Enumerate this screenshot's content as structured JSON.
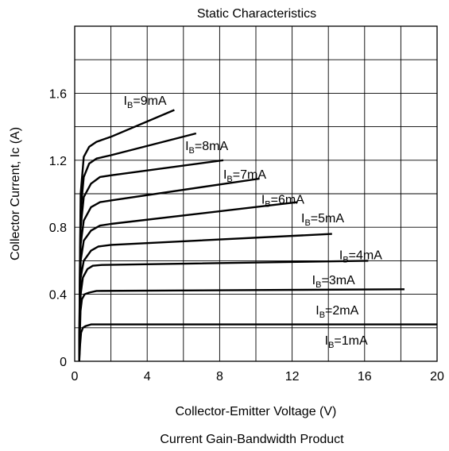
{
  "chart_data": {
    "type": "line",
    "title": "Static Characteristics",
    "xlabel": "Collector-Emitter Voltage (V)",
    "ylabel": "Collector Current, Ic (A)",
    "caption": "Current Gain-Bandwidth Product",
    "xlim": [
      0,
      20
    ],
    "ylim": [
      0,
      2.0
    ],
    "xticks": [
      0,
      4,
      8,
      12,
      16,
      20
    ],
    "yticks": [
      0,
      0.4,
      0.8,
      1.2,
      1.6
    ],
    "ytick_labels": [
      "0",
      "0.4",
      "0.8",
      "1.2",
      "1.6"
    ],
    "grid": true,
    "grid_x_step": 2,
    "grid_y_step": 0.2,
    "line_color": "#000000",
    "series": [
      {
        "label_main": "I",
        "label_sub": "B",
        "label_rest": "=1mA",
        "points": [
          [
            0.25,
            0
          ],
          [
            0.3,
            0.1
          ],
          [
            0.35,
            0.17
          ],
          [
            0.45,
            0.2
          ],
          [
            0.6,
            0.21
          ],
          [
            0.9,
            0.22
          ],
          [
            1.2,
            0.22
          ],
          [
            20,
            0.22
          ]
        ]
      },
      {
        "label_main": "I",
        "label_sub": "B",
        "label_rest": "=2mA",
        "points": [
          [
            0.25,
            0
          ],
          [
            0.28,
            0.15
          ],
          [
            0.32,
            0.3
          ],
          [
            0.4,
            0.37
          ],
          [
            0.55,
            0.4
          ],
          [
            0.8,
            0.41
          ],
          [
            1.2,
            0.42
          ],
          [
            18.2,
            0.43
          ]
        ]
      },
      {
        "label_main": "I",
        "label_sub": "B",
        "label_rest": "=3mA",
        "points": [
          [
            0.25,
            0
          ],
          [
            0.28,
            0.2
          ],
          [
            0.33,
            0.4
          ],
          [
            0.45,
            0.5
          ],
          [
            0.7,
            0.55
          ],
          [
            1.0,
            0.57
          ],
          [
            1.5,
            0.575
          ],
          [
            16.2,
            0.6
          ]
        ]
      },
      {
        "label_main": "I",
        "label_sub": "B",
        "label_rest": "=4mA",
        "points": [
          [
            0.25,
            0
          ],
          [
            0.28,
            0.25
          ],
          [
            0.33,
            0.5
          ],
          [
            0.5,
            0.6
          ],
          [
            0.9,
            0.66
          ],
          [
            1.3,
            0.685
          ],
          [
            2.0,
            0.695
          ],
          [
            14.2,
            0.76
          ]
        ]
      },
      {
        "label_main": "I",
        "label_sub": "B",
        "label_rest": "=5mA",
        "points": [
          [
            0.25,
            0
          ],
          [
            0.28,
            0.3
          ],
          [
            0.33,
            0.6
          ],
          [
            0.5,
            0.72
          ],
          [
            0.9,
            0.78
          ],
          [
            1.4,
            0.81
          ],
          [
            2.0,
            0.82
          ],
          [
            12.3,
            0.95
          ]
        ]
      },
      {
        "label_main": "I",
        "label_sub": "B",
        "label_rest": "=6mA",
        "points": [
          [
            0.25,
            0
          ],
          [
            0.28,
            0.35
          ],
          [
            0.33,
            0.7
          ],
          [
            0.5,
            0.84
          ],
          [
            0.9,
            0.92
          ],
          [
            1.4,
            0.95
          ],
          [
            2.0,
            0.96
          ],
          [
            10.2,
            1.09
          ]
        ]
      },
      {
        "label_main": "I",
        "label_sub": "B",
        "label_rest": "=7mA",
        "points": [
          [
            0.25,
            0
          ],
          [
            0.28,
            0.4
          ],
          [
            0.33,
            0.8
          ],
          [
            0.5,
            0.98
          ],
          [
            0.9,
            1.06
          ],
          [
            1.4,
            1.1
          ],
          [
            2.0,
            1.11
          ],
          [
            8.2,
            1.2
          ]
        ]
      },
      {
        "label_main": "I",
        "label_sub": "B",
        "label_rest": "=8mA",
        "points": [
          [
            0.25,
            0
          ],
          [
            0.28,
            0.45
          ],
          [
            0.33,
            0.9
          ],
          [
            0.5,
            1.1
          ],
          [
            0.8,
            1.18
          ],
          [
            1.2,
            1.21
          ],
          [
            2.0,
            1.23
          ],
          [
            6.7,
            1.36
          ]
        ]
      },
      {
        "label_main": "I",
        "label_sub": "B",
        "label_rest": "=9mA",
        "points": [
          [
            0.25,
            0
          ],
          [
            0.28,
            0.5
          ],
          [
            0.33,
            1.0
          ],
          [
            0.5,
            1.22
          ],
          [
            0.8,
            1.28
          ],
          [
            1.2,
            1.31
          ],
          [
            2.0,
            1.34
          ],
          [
            5.5,
            1.5
          ]
        ]
      }
    ],
    "label_positions": [
      [
        13.8,
        0.1
      ],
      [
        13.3,
        0.28
      ],
      [
        13.1,
        0.46
      ],
      [
        14.6,
        0.61
      ],
      [
        12.5,
        0.83
      ],
      [
        10.3,
        0.94
      ],
      [
        8.2,
        1.09
      ],
      [
        6.1,
        1.26
      ],
      [
        2.7,
        1.53
      ]
    ]
  }
}
